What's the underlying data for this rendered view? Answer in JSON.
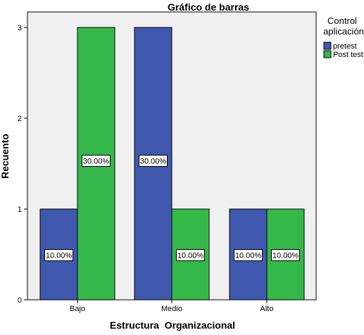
{
  "chart_data": {
    "type": "bar",
    "title": "Gráfico de barras",
    "xlabel": "Estructura  Organizacional",
    "ylabel": "Recuento",
    "categories": [
      "Bajo",
      "Medio",
      "Alto"
    ],
    "ylim": [
      0,
      3.3
    ],
    "yticks": [
      0,
      1,
      2,
      3
    ],
    "grid": false,
    "legend": {
      "title_lines": [
        "Control",
        "aplicación"
      ],
      "placement": "top-right-outside"
    },
    "series": [
      {
        "name": "pretest",
        "color": "#3f58ae",
        "values": [
          1,
          3,
          1
        ],
        "labels": [
          "10.00%",
          "30.00%",
          "10.00%"
        ]
      },
      {
        "name": "Post test",
        "color": "#34b84a",
        "values": [
          3,
          1,
          1
        ],
        "labels": [
          "30.00%",
          "10.00%",
          "10.00%"
        ]
      }
    ]
  }
}
